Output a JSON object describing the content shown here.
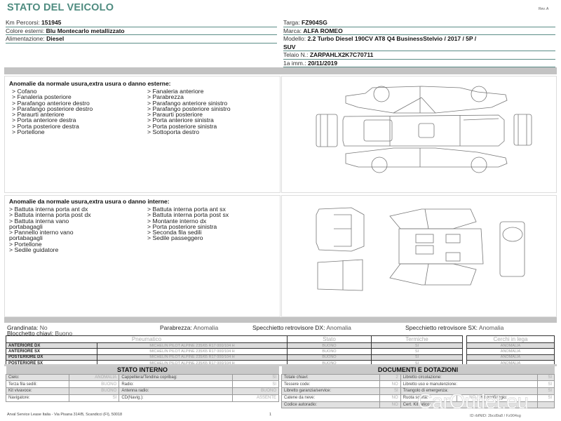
{
  "header": {
    "title": "STATO DEL VEICOLO",
    "rev": "Rev. A"
  },
  "vehicle_left": [
    {
      "label": "Km Percorsi:",
      "value": "151945"
    },
    {
      "label": "Colore esterni:",
      "value": "Blu Montecarlo metallizzato"
    },
    {
      "label": "Alimentazione:",
      "value": "Diesel"
    }
  ],
  "vehicle_right": [
    {
      "label": "Targa:",
      "value": "FZ904SG"
    },
    {
      "label": "Marca:",
      "value": "ALFA ROMEO"
    },
    {
      "label": "Modello:",
      "value": "2.2 Turbo Diesel 190CV AT8 Q4 BusinessStelvio / 2017 / 5P /"
    },
    {
      "label": "",
      "value": "SUV"
    },
    {
      "label": "Telaio N.:",
      "value": "ZARPAHLX2K7C70711"
    },
    {
      "label": "1a imm.:",
      "value": "20/11/2019"
    }
  ],
  "exterior": {
    "heading": "Anomalie da normale usura,extra usura o danno esterne:",
    "col1": [
      "> Cofano",
      "> Fanaleria posteriore",
      "> Parafango anteriore destro",
      "> Parafango posteriore destro",
      "> Paraurti anteriore",
      "> Porta anteriore destra",
      "> Porta posteriore destra",
      "> Portellone"
    ],
    "col2": [
      "> Fanaleria anteriore",
      "> Parabrezza",
      "> Parafango anteriore sinistro",
      "> Parafango posteriore sinistro",
      "> Paraurti posteriore",
      "> Porta anteriore sinistra",
      "> Porta posteriore sinistra",
      "> Sottoporta destro"
    ]
  },
  "interior": {
    "heading": "Anomalie da normale usura,extra usura o danno interne:",
    "col1": [
      "> Battuta interna porta ant dx",
      "> Battuta interna porta post dx",
      "> Battuta interna vano",
      "portabagagli",
      "> Pannello interno vano",
      "portabagagli",
      "> Portellone",
      "> Sedile guidatore"
    ],
    "col2": [
      "> Battuta interna porta ant sx",
      "> Battuta interna porta post sx",
      "> Montante interno dx",
      "> Porta posteriore sinistra",
      "> Seconda fila sedili",
      "> Sedile passeggero"
    ]
  },
  "damage_dot_color": "#2a2f8f",
  "general": {
    "grandinata": {
      "label": "Grandinata:",
      "value": "No"
    },
    "blocchetto": {
      "label": "Blocchetto chiavi:",
      "value": "Buono"
    },
    "parabrezza": {
      "label": "Parabrezza:",
      "value": "Anomalia"
    },
    "spec_dx": {
      "label": "Specchietto retrovisore DX:",
      "value": "Anomalia"
    },
    "spec_sx": {
      "label": "Specchietto retrovisore SX:",
      "value": "Anomalia"
    }
  },
  "tyres": {
    "headers": [
      "Pneumatico",
      "Stato",
      "Termiche"
    ],
    "cerchi_header": "Cerchi in lega",
    "rows": [
      {
        "pos": "ANTERIORE DX",
        "tyre": "MICHELIN PILOT ALPINE  235/65 R17 000/104 H",
        "stato": "BUONO",
        "termiche": "SI",
        "cerchi": "ANOMALIA"
      },
      {
        "pos": "ANTERIORE SX",
        "tyre": "MICHELIN PILOT ALPINE  235/65 R17 000/104 H",
        "stato": "BUONO",
        "termiche": "SI",
        "cerchi": "ANOMALIA"
      },
      {
        "pos": "POSTERIORE DX",
        "tyre": "MICHELIN PILOT ALPINE  235/65 R17 000/104 H",
        "stato": "BUONO",
        "termiche": "SI",
        "cerchi": "ANOMALIA"
      },
      {
        "pos": "POSTERIORE SX",
        "tyre": "MICHELIN PILOT ALPINE  235/65 R17 000/104 H",
        "stato": "BUONO",
        "termiche": "SI",
        "cerchi": "ANOMALIA"
      }
    ]
  },
  "stato_interno": {
    "title": "STATO INTERNO",
    "rows": [
      [
        {
          "l": "Cielo:",
          "v": "ANOMALIA"
        },
        {
          "l": "Cappelliera/Tendina copribag:",
          "v": "SI"
        }
      ],
      [
        {
          "l": "Terza fila sedili:",
          "v": "BUONO"
        },
        {
          "l": "Radio:",
          "v": "SI"
        }
      ],
      [
        {
          "l": "Kit vivavoce:",
          "v": "BUONO"
        },
        {
          "l": "Antenna radio:",
          "v": "BUONO"
        }
      ],
      [
        {
          "l": "Navigatore:",
          "v": "SI"
        },
        {
          "l": "CD(Navig.):",
          "v": "ASSENTE"
        }
      ]
    ]
  },
  "documenti": {
    "title": "DOCUMENTI E DOTAZIONI",
    "rows": [
      [
        {
          "l": "Totale chiavi:",
          "v": "2"
        },
        {
          "l": "Libretto circolazione:",
          "v": "SI"
        }
      ],
      [
        {
          "l": "Tessere code:",
          "v": "NO"
        },
        {
          "l": "Libretto uso e manutenzione:",
          "v": "SI"
        }
      ],
      [
        {
          "l": "Libretto garanzia/service:",
          "v": "SI"
        },
        {
          "l": "Triangolo di emergenza:",
          "v": "SI"
        }
      ],
      [
        {
          "l": "Catene da neve:",
          "v": "NO"
        },
        {
          "l": "Ruota scorta:",
          "v": "NO"
        },
        {
          "l": "Kit gonfiaggio:",
          "v": "SI"
        }
      ],
      [
        {
          "l": "Codice autoradio:",
          "v": "NO"
        },
        {
          "l": "Cert. Kit fatico:",
          "v": ""
        }
      ]
    ]
  },
  "footer": {
    "address": "Arval Service Lease Italia - Via Pisana 314/B, Scandicci (FI), 50018",
    "page": "1",
    "doc_id": "ID rbfNID: 2bcd9a8 / Fz904sg"
  },
  "watermark": "CarOutlet.eu"
}
